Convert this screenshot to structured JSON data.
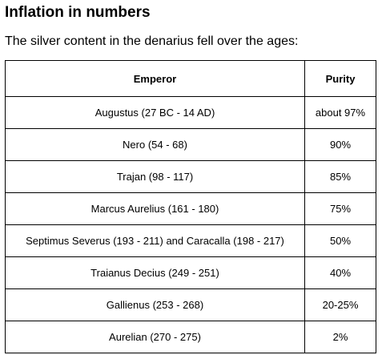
{
  "heading": "Inflation in numbers",
  "intro": "The silver content in the denarius fell over the ages:",
  "table": {
    "headers": {
      "emperor": "Emperor",
      "purity": "Purity"
    },
    "rows": [
      {
        "emperor": "Augustus (27 BC - 14 AD)",
        "purity": "about 97%"
      },
      {
        "emperor": "Nero (54 - 68)",
        "purity": "90%"
      },
      {
        "emperor": "Trajan (98 - 117)",
        "purity": "85%"
      },
      {
        "emperor": "Marcus Aurelius (161 - 180)",
        "purity": "75%"
      },
      {
        "emperor": "Septimus Severus (193 - 211) and Caracalla (198 - 217)",
        "purity": "50%"
      },
      {
        "emperor": "Traianus Decius (249 - 251)",
        "purity": "40%"
      },
      {
        "emperor": "Gallienus (253 - 268)",
        "purity": "20-25%"
      },
      {
        "emperor": "Aurelian (270 - 275)",
        "purity": "2%"
      }
    ]
  }
}
